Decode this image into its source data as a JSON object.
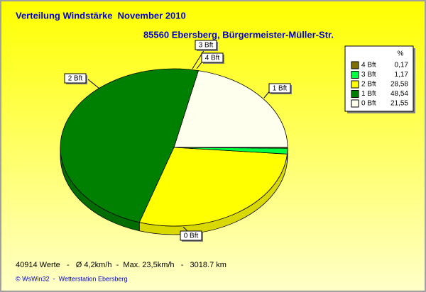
{
  "chart_data": {
    "type": "pie",
    "title": "Verteilung Windstärke  November 2010",
    "subtitle": "85560 Ebersberg, Bürgermeister-Müller-Str.",
    "legend_title": "%",
    "categories": [
      "4 Bft",
      "3 Bft",
      "2 Bft",
      "1 Bft",
      "0 Bft"
    ],
    "values": [
      0.17,
      1.17,
      28.58,
      48.54,
      21.55
    ],
    "value_labels": [
      "0,17",
      "1,17",
      "28,58",
      "48,54",
      "21,55"
    ],
    "colors": [
      "#807000",
      "#00ff40",
      "#ffff00",
      "#008000",
      "#ffffee"
    ],
    "footnotes": [
      "40914 Werte   -   Ø 4,2km/h  -  Max. 23,5km/h   -   3018.7 km",
      "© WsWin32  -  Wetterstation Ebersberg"
    ]
  }
}
